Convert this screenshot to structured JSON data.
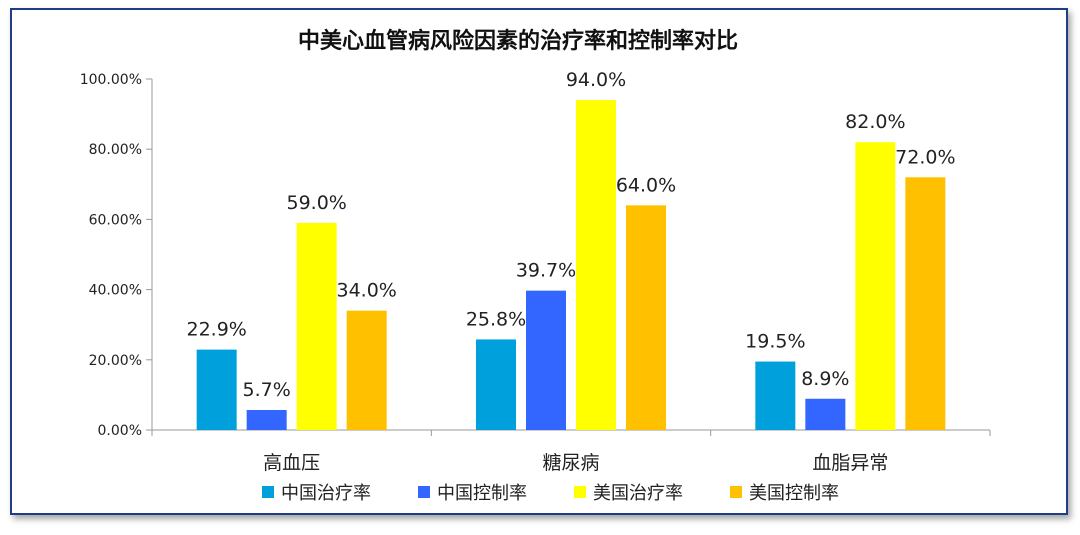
{
  "chart_data": {
    "type": "bar",
    "title": "中美心血管病风险因素的治疗率和控制率对比",
    "categories": [
      "高血压",
      "糖尿病",
      "血脂异常"
    ],
    "series": [
      {
        "name": "中国治疗率",
        "color": "#00a0dc",
        "values": [
          22.9,
          25.8,
          19.5
        ],
        "labels": [
          "22.9%",
          "25.8%",
          "19.5%"
        ]
      },
      {
        "name": "中国控制率",
        "color": "#3366ff",
        "values": [
          5.7,
          39.7,
          8.9
        ],
        "labels": [
          "5.7%",
          "39.7%",
          "8.9%"
        ]
      },
      {
        "name": "美国治疗率",
        "color": "#ffff00",
        "values": [
          59.0,
          94.0,
          82.0
        ],
        "labels": [
          "59.0%",
          "94.0%",
          "82.0%"
        ]
      },
      {
        "name": "美国控制率",
        "color": "#ffc000",
        "values": [
          34.0,
          64.0,
          72.0
        ],
        "labels": [
          "34.0%",
          "64.0%",
          "72.0%"
        ]
      }
    ],
    "ylim": [
      0,
      100
    ],
    "yticks": [
      0,
      20,
      40,
      60,
      80,
      100
    ],
    "ytick_labels": [
      "0.00%",
      "20.00%",
      "40.00%",
      "60.00%",
      "80.00%",
      "100.00%"
    ],
    "grid": false,
    "legend": "bottom",
    "xlabel": "",
    "ylabel": ""
  }
}
